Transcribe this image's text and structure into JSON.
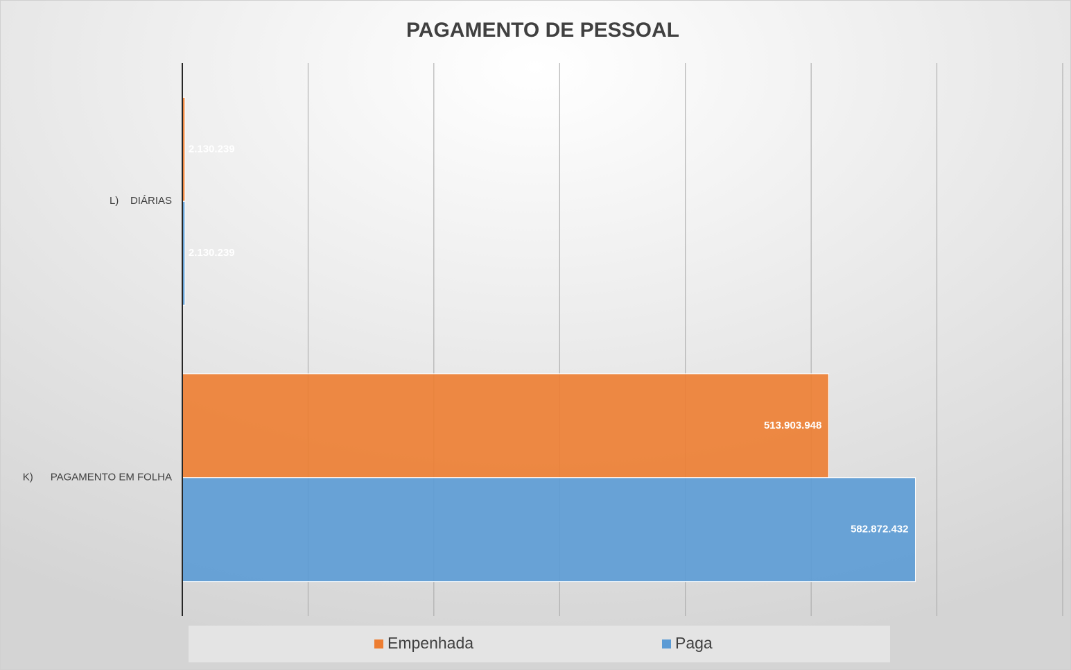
{
  "chart_data": {
    "type": "bar",
    "orientation": "horizontal",
    "title": "PAGAMENTO DE PESSOAL",
    "categories": [
      "L)    DIÁRIAS",
      "K)      PAGAMENTO EM FOLHA"
    ],
    "series": [
      {
        "name": "Empenhada",
        "color": "#ed7d31",
        "values": [
          2130239,
          513903948
        ],
        "value_labels": [
          "2.130.239",
          "513.903.948"
        ]
      },
      {
        "name": "Paga",
        "color": "#5b9bd5",
        "values": [
          2130239,
          582872432
        ],
        "value_labels": [
          "2.130.239",
          "582.872.432"
        ]
      }
    ],
    "xlim": [
      0,
      700000000
    ],
    "xticks": [
      0,
      100000000,
      200000000,
      300000000,
      400000000,
      500000000,
      600000000,
      700000000
    ],
    "grid": true,
    "legend": "bottom"
  }
}
